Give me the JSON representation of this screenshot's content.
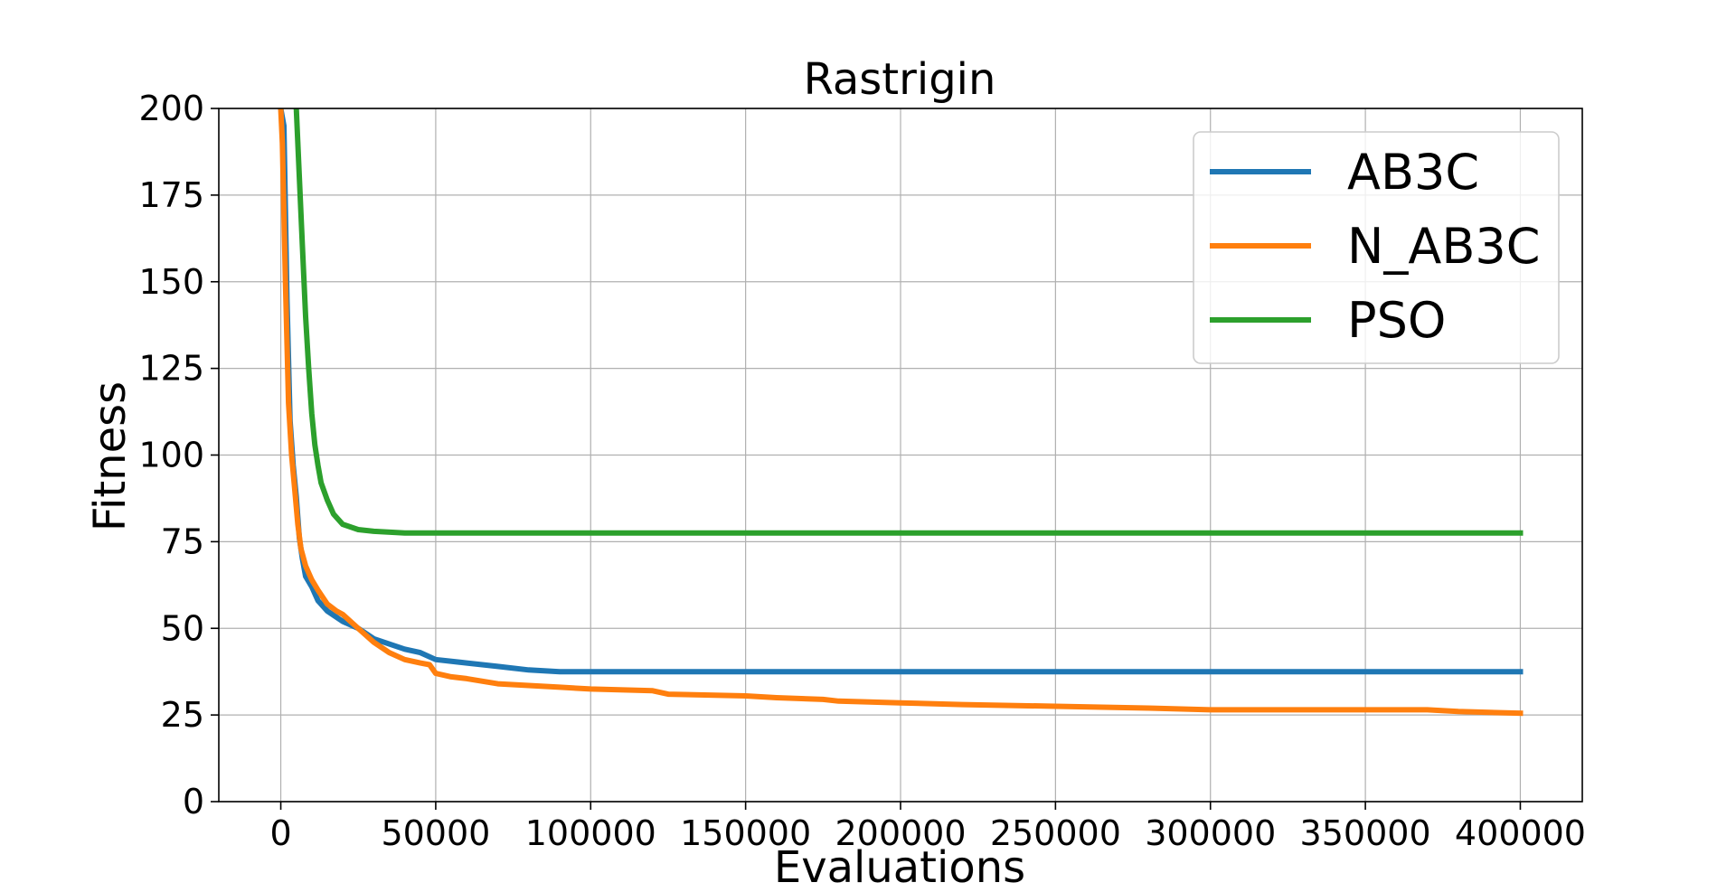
{
  "chart_data": {
    "type": "line",
    "title": "Rastrigin",
    "xlabel": "Evaluations",
    "ylabel": "Fitness",
    "xlim": [
      -20000,
      420000
    ],
    "ylim": [
      0,
      200
    ],
    "x_ticks": [
      0,
      50000,
      100000,
      150000,
      200000,
      250000,
      300000,
      350000,
      400000
    ],
    "x_tick_labels": [
      "0",
      "50000",
      "100000",
      "150000",
      "200000",
      "250000",
      "300000",
      "350000",
      "400000"
    ],
    "y_ticks": [
      0,
      25,
      50,
      75,
      100,
      125,
      150,
      175,
      200
    ],
    "y_tick_labels": [
      "0",
      "25",
      "50",
      "75",
      "100",
      "125",
      "150",
      "175",
      "200"
    ],
    "grid": true,
    "legend_position": "top-right",
    "series": [
      {
        "name": "AB3C",
        "color": "#1f77b4",
        "points": [
          [
            0,
            200
          ],
          [
            1000,
            195
          ],
          [
            2000,
            145
          ],
          [
            3000,
            110
          ],
          [
            4000,
            97
          ],
          [
            5000,
            88
          ],
          [
            6000,
            76
          ],
          [
            7000,
            70
          ],
          [
            8000,
            65
          ],
          [
            10000,
            62
          ],
          [
            12000,
            58
          ],
          [
            15000,
            55
          ],
          [
            20000,
            52
          ],
          [
            25000,
            50
          ],
          [
            30000,
            47
          ],
          [
            40000,
            44
          ],
          [
            45000,
            43
          ],
          [
            50000,
            41
          ],
          [
            60000,
            40
          ],
          [
            70000,
            39
          ],
          [
            80000,
            38
          ],
          [
            90000,
            37.5
          ],
          [
            400000,
            37.5
          ]
        ]
      },
      {
        "name": "N_AB3C",
        "color": "#ff7f0e",
        "points": [
          [
            0,
            200
          ],
          [
            500,
            190
          ],
          [
            1500,
            150
          ],
          [
            2500,
            115
          ],
          [
            3500,
            100
          ],
          [
            4500,
            90
          ],
          [
            5500,
            80
          ],
          [
            6500,
            73
          ],
          [
            8000,
            68
          ],
          [
            10000,
            64
          ],
          [
            12000,
            61
          ],
          [
            15000,
            57
          ],
          [
            18000,
            55
          ],
          [
            20000,
            54
          ],
          [
            25000,
            50
          ],
          [
            30000,
            46
          ],
          [
            35000,
            43
          ],
          [
            40000,
            41
          ],
          [
            45000,
            40
          ],
          [
            48000,
            39.5
          ],
          [
            50000,
            37
          ],
          [
            55000,
            36
          ],
          [
            60000,
            35.5
          ],
          [
            70000,
            34
          ],
          [
            80000,
            33.5
          ],
          [
            90000,
            33
          ],
          [
            100000,
            32.5
          ],
          [
            120000,
            32
          ],
          [
            125000,
            31
          ],
          [
            150000,
            30.5
          ],
          [
            160000,
            30
          ],
          [
            175000,
            29.5
          ],
          [
            180000,
            29
          ],
          [
            200000,
            28.5
          ],
          [
            220000,
            28
          ],
          [
            250000,
            27.5
          ],
          [
            280000,
            27
          ],
          [
            300000,
            26.5
          ],
          [
            350000,
            26.5
          ],
          [
            370000,
            26.5
          ],
          [
            380000,
            26
          ],
          [
            400000,
            25.5
          ]
        ]
      },
      {
        "name": "PSO",
        "color": "#2ca02c",
        "points": [
          [
            5000,
            200
          ],
          [
            6000,
            180
          ],
          [
            7000,
            160
          ],
          [
            8000,
            140
          ],
          [
            9000,
            125
          ],
          [
            10000,
            112
          ],
          [
            11000,
            103
          ],
          [
            12000,
            97
          ],
          [
            13000,
            92
          ],
          [
            15000,
            87
          ],
          [
            17000,
            83
          ],
          [
            20000,
            80
          ],
          [
            25000,
            78.5
          ],
          [
            30000,
            78
          ],
          [
            40000,
            77.5
          ],
          [
            400000,
            77.5
          ]
        ]
      }
    ]
  }
}
